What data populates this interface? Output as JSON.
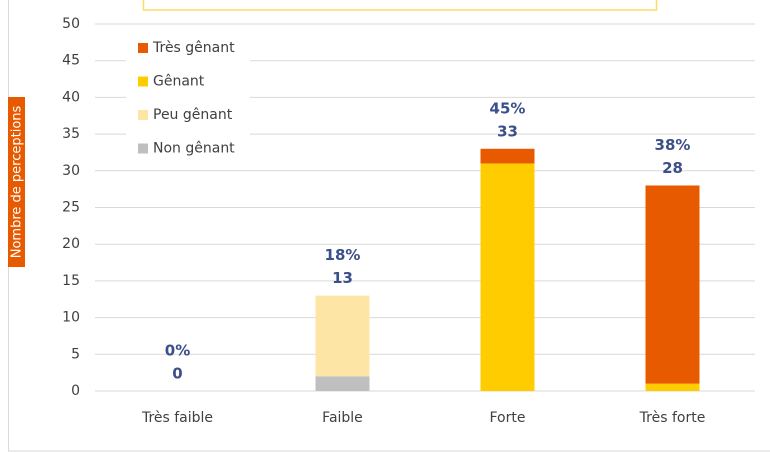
{
  "chart_data": {
    "type": "stacked_bar",
    "categories": [
      "Très faible",
      "Faible",
      "Forte",
      "Très forte"
    ],
    "series": [
      {
        "name": "Très gênant",
        "color": "#e85a00",
        "values": [
          0,
          0,
          2,
          27
        ]
      },
      {
        "name": "Gênant",
        "color": "#ffcc00",
        "values": [
          0,
          0,
          31,
          1
        ]
      },
      {
        "name": "Peu gênant",
        "color": "#fde5a6",
        "values": [
          0,
          11,
          0,
          0
        ]
      },
      {
        "name": "Non gênant",
        "color": "#bfbfbf",
        "values": [
          0,
          2,
          0,
          0
        ]
      }
    ],
    "totals": [
      0,
      13,
      33,
      28
    ],
    "percent_labels": [
      "0%",
      "18%",
      "45%",
      "38%"
    ],
    "ylabel": "Nombre de perceptions",
    "ylim": [
      0,
      50
    ],
    "yticks": [
      0,
      5,
      10,
      15,
      20,
      25,
      30,
      35,
      40,
      45,
      50
    ],
    "grid": true,
    "legend": "upper left"
  }
}
